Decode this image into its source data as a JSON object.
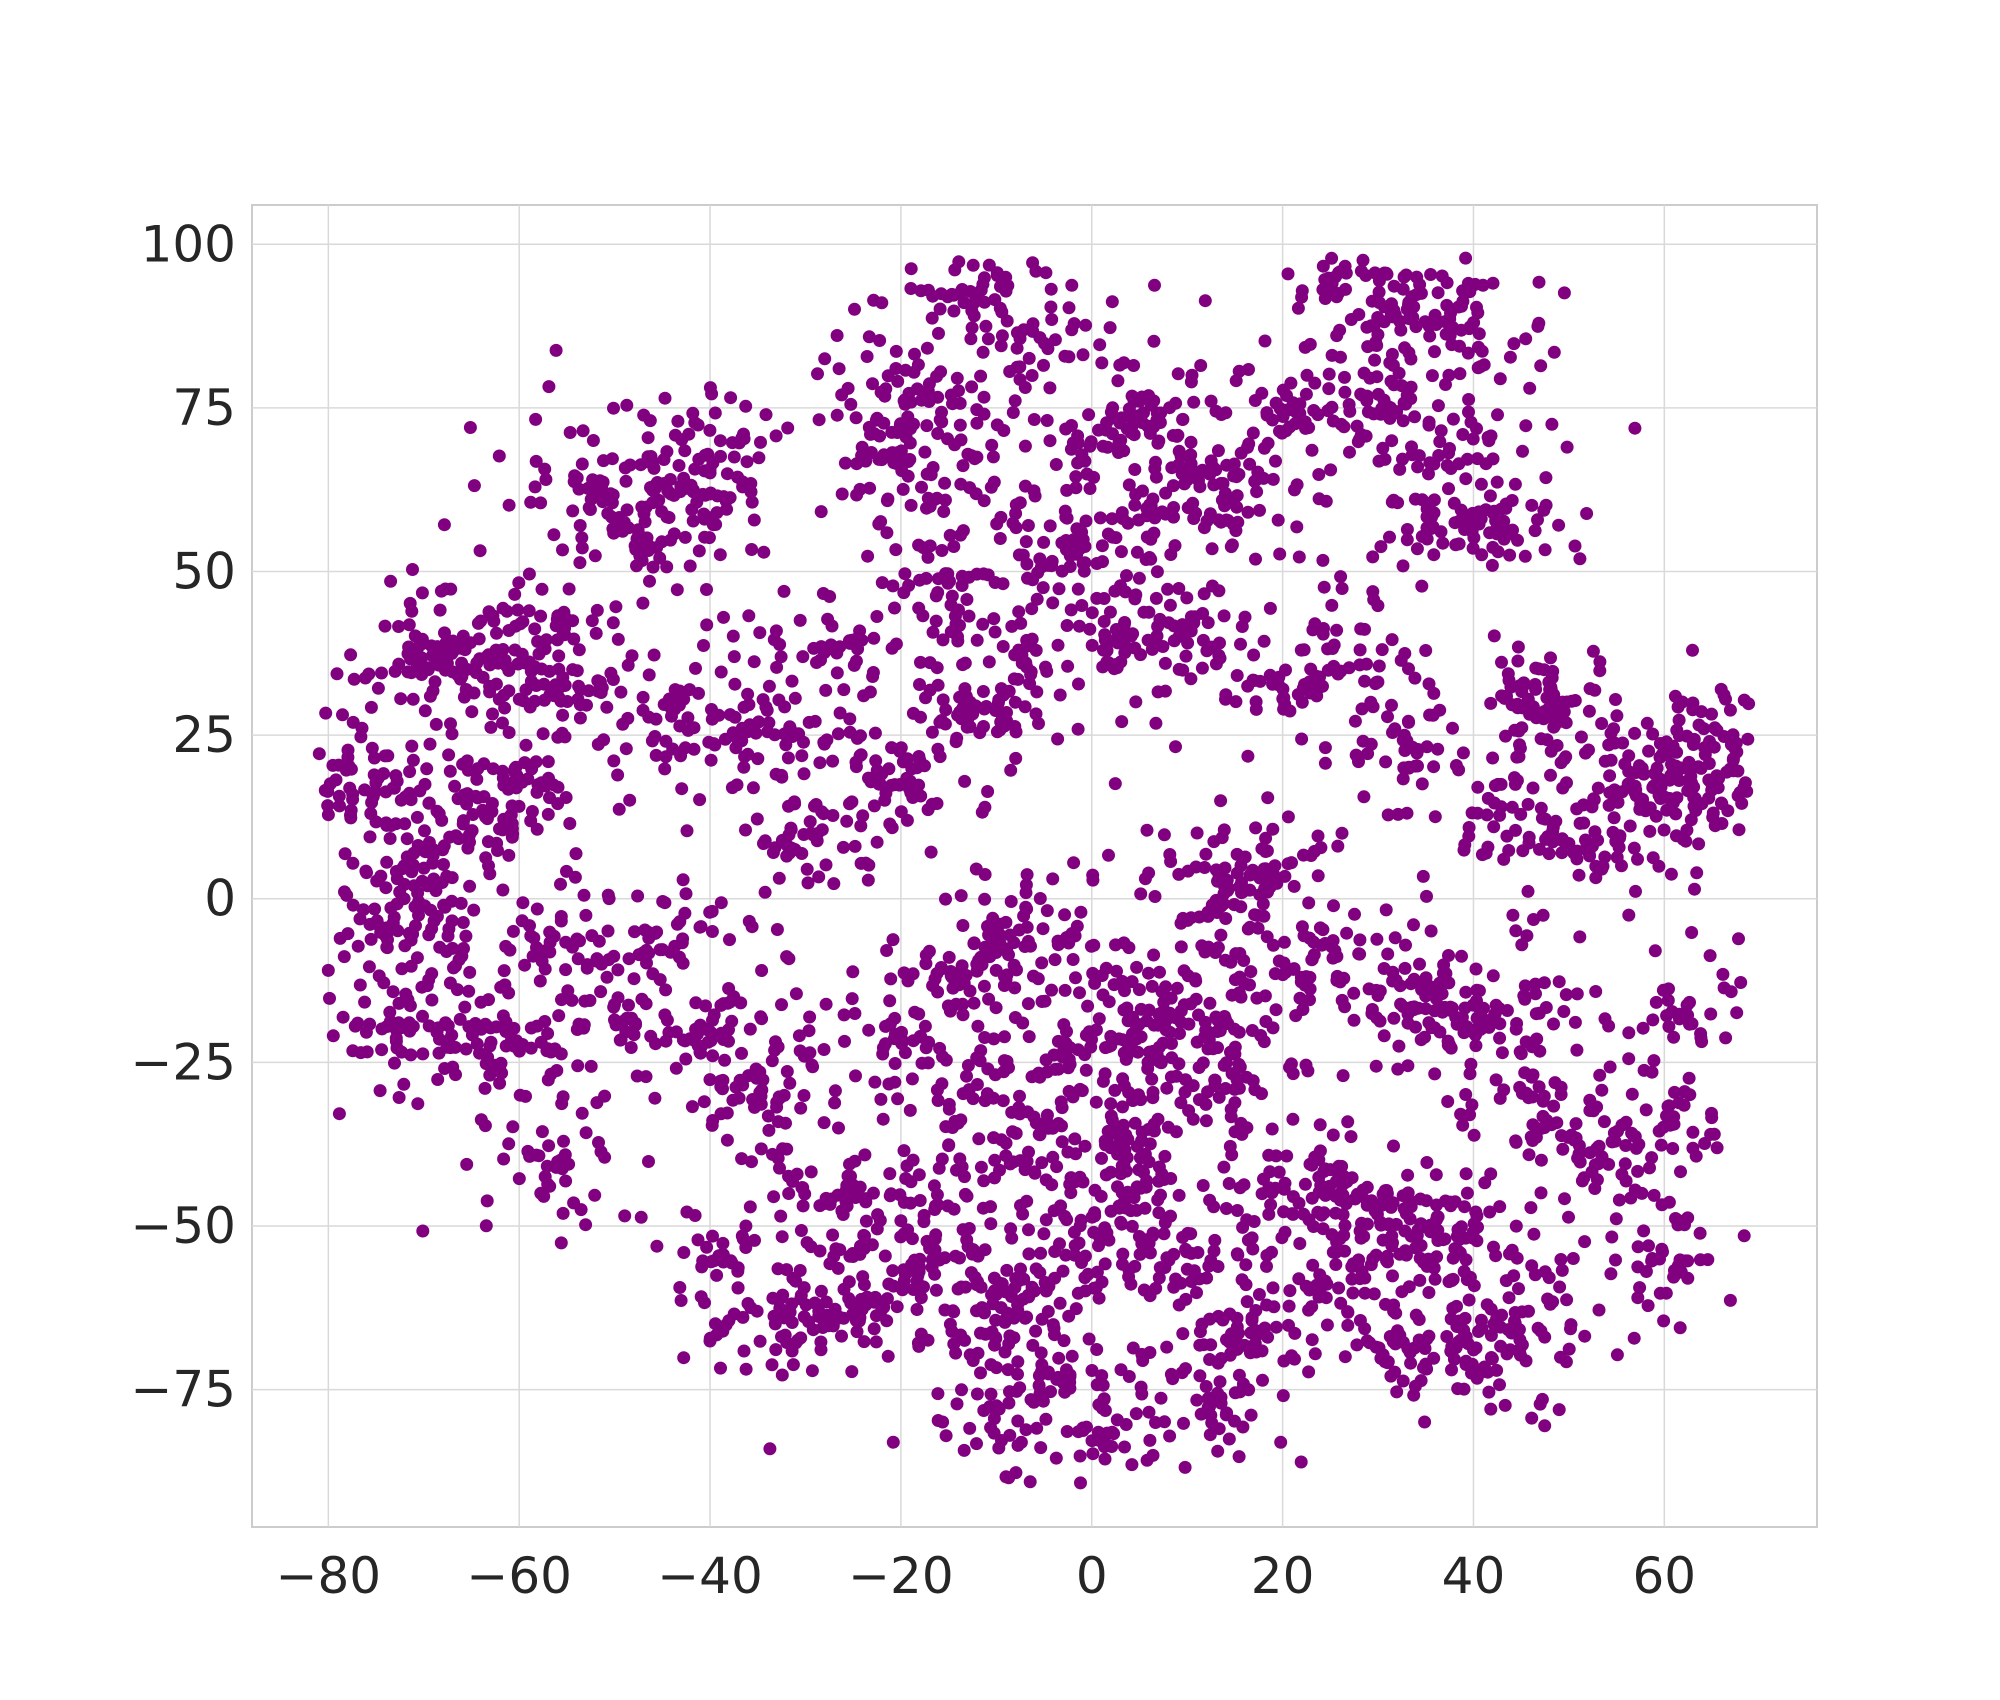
{
  "chart_data": {
    "type": "scatter",
    "title": "",
    "xlabel": "",
    "ylabel": "",
    "xlim": [
      -88,
      76
    ],
    "ylim": [
      -96,
      106
    ],
    "x_ticks": [
      -80,
      -60,
      -40,
      -20,
      0,
      20,
      40,
      60
    ],
    "y_ticks": [
      -75,
      -50,
      -25,
      0,
      25,
      50,
      75,
      100
    ],
    "x_tick_labels": [
      "−80",
      "−60",
      "−40",
      "−20",
      "0",
      "20",
      "40",
      "60"
    ],
    "y_tick_labels": [
      "−75",
      "−50",
      "−25",
      "0",
      "25",
      "50",
      "75",
      "100"
    ],
    "grid": true,
    "legend": "none",
    "marker_color": "#800080",
    "series": [
      {
        "name": "",
        "color": "#800080",
        "cluster_centers": [
          [
            -79,
            17
          ],
          [
            -76,
            16
          ],
          [
            -70,
            36
          ],
          [
            -65,
            38
          ],
          [
            -60,
            33
          ],
          [
            -55,
            31
          ],
          [
            -58,
            42
          ],
          [
            -64,
            14
          ],
          [
            -60,
            16
          ],
          [
            -70,
            5
          ],
          [
            -72,
            -5
          ],
          [
            -68,
            -10
          ],
          [
            -74,
            -20
          ],
          [
            -52,
            63
          ],
          [
            -44,
            62
          ],
          [
            -40,
            68
          ],
          [
            -47,
            55
          ],
          [
            -42,
            28
          ],
          [
            -36,
            26
          ],
          [
            -30,
            24
          ],
          [
            -27,
            38
          ],
          [
            -20,
            18
          ],
          [
            -15,
            48
          ],
          [
            -12,
            28
          ],
          [
            -8,
            36
          ],
          [
            -12,
            93
          ],
          [
            -5,
            87
          ],
          [
            -18,
            78
          ],
          [
            -20,
            70
          ],
          [
            2,
            70
          ],
          [
            5,
            75
          ],
          [
            8,
            60
          ],
          [
            14,
            61
          ],
          [
            -2,
            53
          ],
          [
            4,
            40
          ],
          [
            10,
            42
          ],
          [
            20,
            33
          ],
          [
            -15,
            60
          ],
          [
            20,
            73
          ],
          [
            28,
            95
          ],
          [
            33,
            90
          ],
          [
            38,
            88
          ],
          [
            30,
            75
          ],
          [
            38,
            70
          ],
          [
            35,
            57
          ],
          [
            42,
            57
          ],
          [
            26,
            38
          ],
          [
            46,
            33
          ],
          [
            48,
            27
          ],
          [
            42,
            10
          ],
          [
            52,
            8
          ],
          [
            58,
            18
          ],
          [
            63,
            20
          ],
          [
            66,
            25
          ],
          [
            65,
            15
          ],
          [
            32,
            23
          ],
          [
            14,
            2
          ],
          [
            18,
            5
          ],
          [
            -45,
            -5
          ],
          [
            -48,
            -20
          ],
          [
            -40,
            -20
          ],
          [
            -35,
            -30
          ],
          [
            -38,
            -55
          ],
          [
            -28,
            -45
          ],
          [
            -30,
            10
          ],
          [
            -20,
            -20
          ],
          [
            -14,
            -30
          ],
          [
            -12,
            -10
          ],
          [
            -6,
            -5
          ],
          [
            -2,
            -25
          ],
          [
            5,
            -20
          ],
          [
            8,
            -10
          ],
          [
            12,
            -20
          ],
          [
            15,
            -30
          ],
          [
            22,
            -10
          ],
          [
            35,
            -15
          ],
          [
            38,
            -18
          ],
          [
            43,
            -20
          ],
          [
            48,
            -32
          ],
          [
            52,
            -40
          ],
          [
            28,
            -48
          ],
          [
            33,
            -50
          ],
          [
            38,
            -52
          ],
          [
            22,
            -45
          ],
          [
            25,
            -60
          ],
          [
            32,
            -68
          ],
          [
            40,
            -70
          ],
          [
            45,
            -65
          ],
          [
            0,
            -50
          ],
          [
            -5,
            -60
          ],
          [
            -2,
            -72
          ],
          [
            -10,
            -65
          ],
          [
            -20,
            -55
          ],
          [
            -25,
            -62
          ],
          [
            -16,
            -45
          ],
          [
            -5,
            -40
          ],
          [
            5,
            -45
          ],
          [
            10,
            -55
          ],
          [
            15,
            -65
          ],
          [
            14,
            -76
          ],
          [
            5,
            -35
          ],
          [
            -30,
            -65
          ],
          [
            60,
            -35
          ],
          [
            63,
            -17
          ],
          [
            -62,
            -23
          ],
          [
            -57,
            -40
          ],
          [
            -55,
            -8
          ],
          [
            -10,
            -80
          ],
          [
            2,
            -82
          ],
          [
            60,
            -55
          ]
        ],
        "point_count": 5200
      }
    ]
  }
}
